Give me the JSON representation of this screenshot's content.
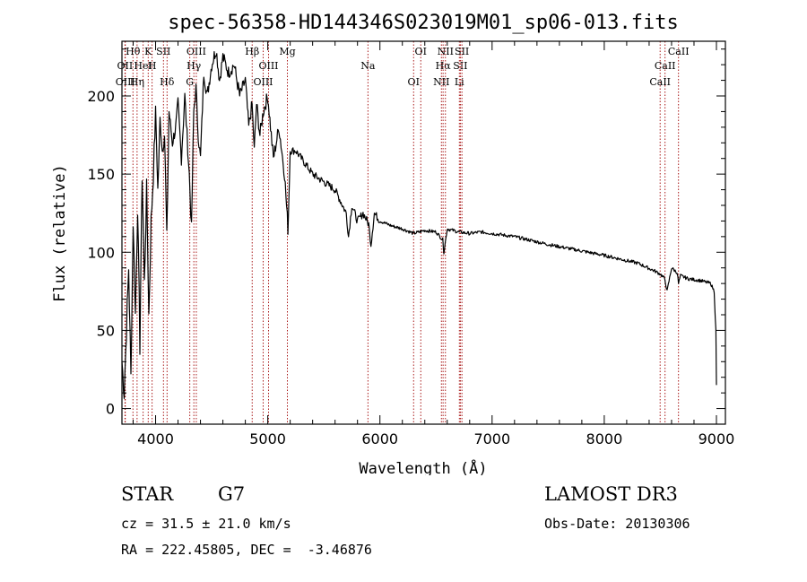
{
  "chart_data": {
    "type": "line",
    "title": "spec-56358-HD144346S023019M01_sp06-013.fits",
    "xlabel": "Wavelength (Å)",
    "ylabel": "Flux (relative)",
    "xlim": [
      3700,
      9080
    ],
    "ylim": [
      -10,
      235
    ],
    "x_ticks": [
      4000,
      5000,
      6000,
      7000,
      8000,
      9000
    ],
    "y_ticks": [
      0,
      50,
      100,
      150,
      200
    ],
    "grid": false,
    "series": [
      {
        "name": "spectrum",
        "x": [
          3700,
          3720,
          3740,
          3760,
          3780,
          3800,
          3820,
          3840,
          3860,
          3880,
          3900,
          3920,
          3940,
          3960,
          3980,
          4000,
          4020,
          4040,
          4060,
          4080,
          4100,
          4120,
          4150,
          4180,
          4200,
          4230,
          4260,
          4280,
          4300,
          4320,
          4340,
          4360,
          4380,
          4400,
          4430,
          4460,
          4500,
          4540,
          4570,
          4600,
          4650,
          4700,
          4750,
          4800,
          4830,
          4860,
          4880,
          4900,
          4930,
          4960,
          5000,
          5050,
          5100,
          5150,
          5180,
          5200,
          5250,
          5300,
          5400,
          5500,
          5600,
          5700,
          5720,
          5750,
          5800,
          5850,
          5900,
          5920,
          5950,
          6000,
          6100,
          6200,
          6300,
          6400,
          6500,
          6560,
          6570,
          6600,
          6700,
          6800,
          6900,
          7000,
          7200,
          7500,
          8000,
          8300,
          8450,
          8500,
          8540,
          8560,
          8600,
          8650,
          8662,
          8680,
          8750,
          8850,
          8950,
          8980,
          8995,
          9000
        ],
        "values": [
          30,
          10,
          50,
          90,
          20,
          120,
          60,
          130,
          40,
          150,
          80,
          140,
          60,
          120,
          150,
          190,
          140,
          185,
          165,
          175,
          110,
          190,
          170,
          180,
          195,
          160,
          200,
          175,
          150,
          115,
          190,
          205,
          175,
          160,
          215,
          200,
          220,
          230,
          210,
          225,
          215,
          220,
          200,
          210,
          180,
          195,
          165,
          195,
          175,
          190,
          200,
          160,
          180,
          150,
          115,
          165,
          165,
          160,
          150,
          145,
          140,
          125,
          110,
          130,
          120,
          125,
          118,
          105,
          125,
          120,
          117,
          115,
          112,
          114,
          113,
          108,
          100,
          115,
          113,
          112,
          113,
          112,
          110,
          105,
          98,
          93,
          88,
          86,
          83,
          75,
          90,
          87,
          80,
          85,
          83,
          82,
          80,
          75,
          50,
          15
        ]
      }
    ],
    "spectral_lines": [
      {
        "label": "Hθ",
        "wavelength": 3798
      },
      {
        "label": "OII",
        "wavelength": 3727
      },
      {
        "label": "OIII",
        "wavelength": 3730
      },
      {
        "label": "K",
        "wavelength": 3934
      },
      {
        "label": "HeI",
        "wavelength": 3889
      },
      {
        "label": "Hη",
        "wavelength": 3835
      },
      {
        "label": "SII",
        "wavelength": 4070
      },
      {
        "label": "H",
        "wavelength": 3969
      },
      {
        "label": "Hδ",
        "wavelength": 4102
      },
      {
        "label": "OIII",
        "wavelength": 4363
      },
      {
        "label": "Hγ",
        "wavelength": 4341
      },
      {
        "label": "G",
        "wavelength": 4305
      },
      {
        "label": "Hβ",
        "wavelength": 4861
      },
      {
        "label": "OIII",
        "wavelength": 5007
      },
      {
        "label": "OIII",
        "wavelength": 4959
      },
      {
        "label": "Mg",
        "wavelength": 5175
      },
      {
        "label": "Na",
        "wavelength": 5893
      },
      {
        "label": "OI",
        "wavelength": 6300
      },
      {
        "label": "OI",
        "wavelength": 6364
      },
      {
        "label": "Hα",
        "wavelength": 6563
      },
      {
        "label": "NII",
        "wavelength": 6548
      },
      {
        "label": "NII",
        "wavelength": 6584
      },
      {
        "label": "SII",
        "wavelength": 6717
      },
      {
        "label": "Li",
        "wavelength": 6708
      },
      {
        "label": "SII",
        "wavelength": 6731
      },
      {
        "label": "CaII",
        "wavelength": 8542
      },
      {
        "label": "CaII",
        "wavelength": 8498
      },
      {
        "label": "CaII",
        "wavelength": 8662
      }
    ]
  },
  "info": {
    "object_type": "STAR",
    "spectral_class": "G7",
    "survey": "LAMOST DR3",
    "cz": "cz = 31.5 ± 21.0 km/s",
    "obs_date": "Obs-Date: 20130306",
    "coords": "RA = 222.45805, DEC =  -3.46876"
  }
}
